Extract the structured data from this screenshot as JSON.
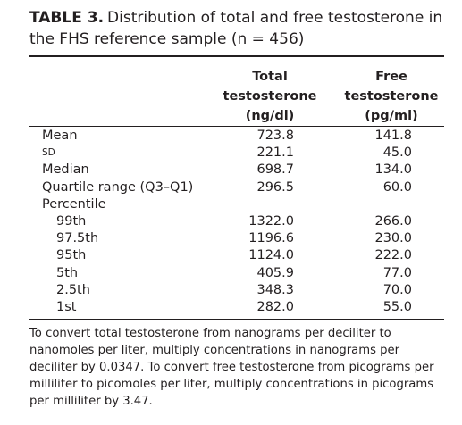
{
  "title": {
    "label": "TABLE 3.",
    "text": "Distribution of total and free testosterone in the FHS reference sample (n = 456)"
  },
  "table": {
    "columns": [
      "Total testosterone (ng/dl)",
      "Free testosterone (pg/ml)"
    ],
    "rows": [
      [
        "Mean",
        "723.8",
        "141.8"
      ],
      [
        "SD",
        "221.1",
        "45.0"
      ],
      [
        "Median",
        "698.7",
        "134.0"
      ],
      [
        "Quartile range (Q3–Q1)",
        "296.5",
        "60.0"
      ],
      [
        "Percentile"
      ],
      [
        "99th",
        "1322.0",
        "266.0"
      ],
      [
        "97.5th",
        "1196.6",
        "230.0"
      ],
      [
        "95th",
        "1124.0",
        "222.0"
      ],
      [
        "5th",
        "405.9",
        "77.0"
      ],
      [
        "2.5th",
        "348.3",
        "70.0"
      ],
      [
        "1st",
        "282.0",
        "55.0"
      ]
    ]
  },
  "footnote": "To convert total testosterone from nanograms per deciliter to nanomoles per liter, multiply concentrations in nanograms per deciliter by 0.0347. To convert free testosterone from picograms per milliliter to picomoles per liter, multiply concentrations in picograms per milliliter by 3.47."
}
